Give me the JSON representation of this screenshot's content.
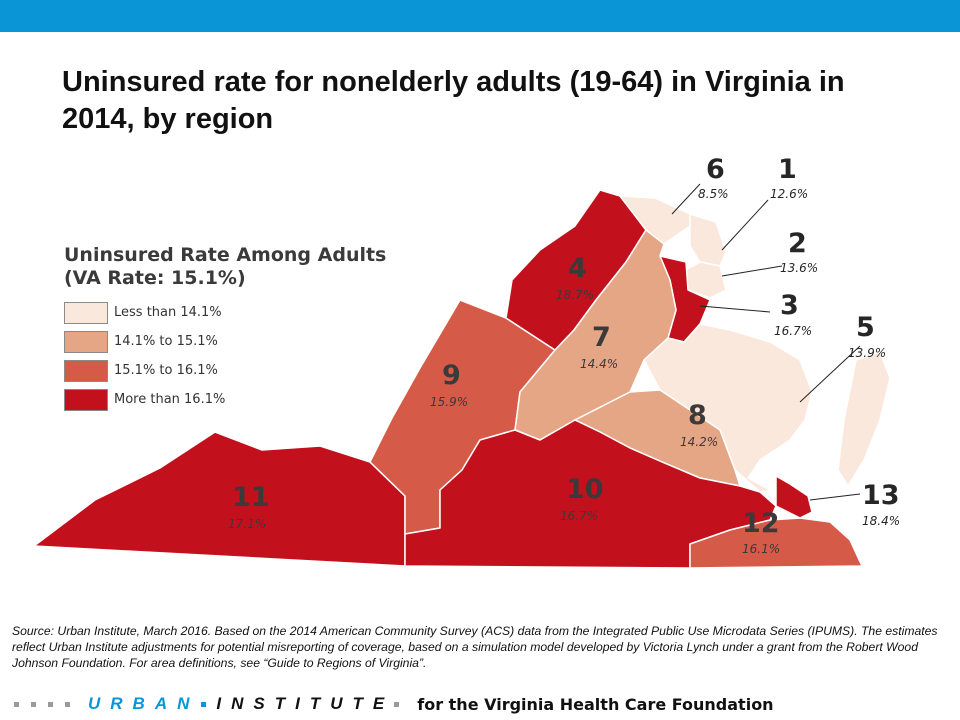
{
  "title": "Uninsured rate for nonelderly adults (19-64) in Virginia in 2014, by region",
  "legend": {
    "title_line1": "Uninsured Rate Among Adults",
    "title_line2": "(VA Rate: 15.1%)",
    "items": [
      {
        "label": "Less than 14.1%",
        "color": "#fbe8dc"
      },
      {
        "label": "14.1% to 15.1%",
        "color": "#e5a685"
      },
      {
        "label": "15.1% to 16.1%",
        "color": "#d65a48"
      },
      {
        "label": "More than 16.1%",
        "color": "#c2101c"
      }
    ]
  },
  "regions": [
    {
      "id": "1",
      "rate": "12.6%",
      "value": 12.6
    },
    {
      "id": "2",
      "rate": "13.6%",
      "value": 13.6
    },
    {
      "id": "3",
      "rate": "16.7%",
      "value": 16.7
    },
    {
      "id": "4",
      "rate": "18.7%",
      "value": 18.7
    },
    {
      "id": "5",
      "rate": "13.9%",
      "value": 13.9
    },
    {
      "id": "6",
      "rate": "8.5%",
      "value": 8.5
    },
    {
      "id": "7",
      "rate": "14.4%",
      "value": 14.4
    },
    {
      "id": "8",
      "rate": "14.2%",
      "value": 14.2
    },
    {
      "id": "9",
      "rate": "15.9%",
      "value": 15.9
    },
    {
      "id": "10",
      "rate": "16.7%",
      "value": 16.7
    },
    {
      "id": "11",
      "rate": "17.1%",
      "value": 17.1
    },
    {
      "id": "12",
      "rate": "16.1%",
      "value": 16.1
    },
    {
      "id": "13",
      "rate": "18.4%",
      "value": 18.4
    }
  ],
  "source": "Source: Urban Institute, March 2016. Based on the 2014 American Community Survey (ACS) data from the Integrated Public Use Microdata Series (IPUMS). The estimates reflect Urban Institute adjustments for potential misreporting of coverage, based on a simulation model developed by Victoria Lynch under a grant from the Robert Wood Johnson Foundation. For area definitions, see “Guide to Regions of Virginia”.",
  "footer": {
    "urban": "URBAN",
    "institute": "INSTITUTE",
    "tagline": "for the Virginia Health Care Foundation"
  },
  "colors": {
    "topbar": "#0a96d6",
    "brand": "#0a96d6"
  }
}
